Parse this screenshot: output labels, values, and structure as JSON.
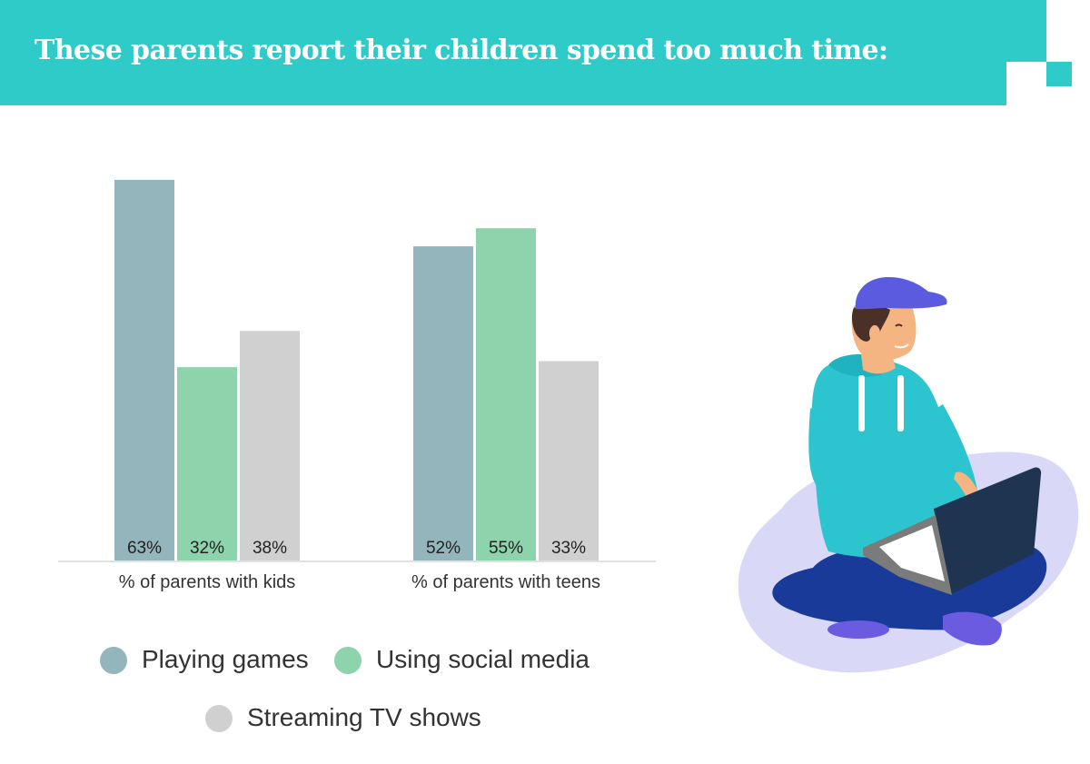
{
  "header": {
    "title": "These parents report their children spend too much time:"
  },
  "colors": {
    "accent": "#2ecbc8",
    "playing_games": "#95b5bc",
    "social_media": "#8dd3ac",
    "streaming_tv": "#d0d0d0"
  },
  "chart_data": {
    "type": "bar",
    "title": "These parents report their children spend too much time:",
    "categories": [
      "% of parents with kids",
      "% of parents with teens"
    ],
    "series": [
      {
        "name": "Playing games",
        "values": [
          63,
          52
        ],
        "labels": [
          "63%",
          "52%"
        ],
        "color": "#95b5bc"
      },
      {
        "name": "Using social media",
        "values": [
          32,
          55
        ],
        "labels": [
          "32%",
          "55%"
        ],
        "color": "#8dd3ac"
      },
      {
        "name": "Streaming TV shows",
        "values": [
          38,
          33
        ],
        "labels": [
          "38%",
          "33%"
        ],
        "color": "#d0d0d0"
      }
    ],
    "ylim": [
      0,
      63
    ],
    "grid": false,
    "legend_position": "bottom"
  },
  "illustration": {
    "name": "boy-with-laptop-illustration",
    "colors": {
      "blob": "#d9d9f7",
      "cap": "#5b5be0",
      "hoodie": "#2cc4cf",
      "pants": "#1a3a9a",
      "skin": "#f5b583",
      "hair": "#4a3028",
      "laptop": "#1e3450",
      "shoes": "#6b5be0"
    }
  }
}
